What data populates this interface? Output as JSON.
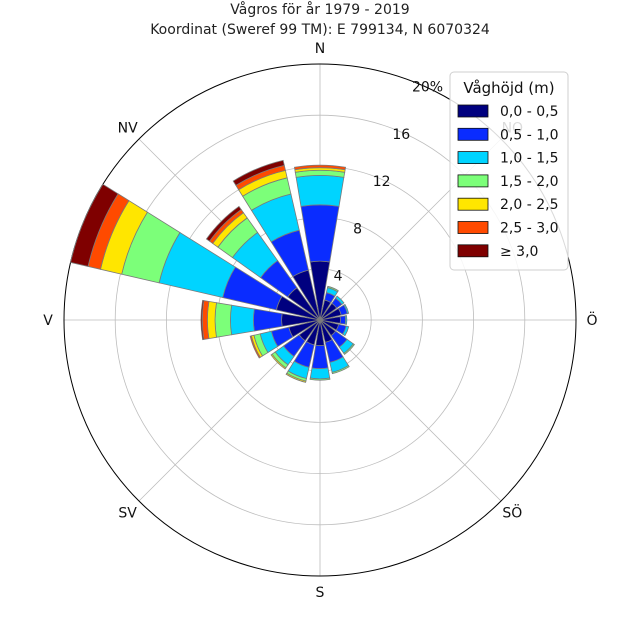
{
  "chart_data": {
    "type": "windrose",
    "title": "Vågros för år 1979 - 2019",
    "subtitle": "Koordinat (Sweref 99 TM): E 799134, N 6070324",
    "directions": [
      "N",
      "NO",
      "Ö",
      "SÖ",
      "S",
      "SV",
      "V",
      "NV"
    ],
    "radial_ticks": [
      "4",
      "8",
      "12",
      "16",
      "20%"
    ],
    "radial_max": 20,
    "legend_title": "Våghöjd (m)",
    "bins": [
      "0,0 - 0,5",
      "0,5 - 1,0",
      "1,0 - 1,5",
      "1,5 - 2,0",
      "2,0 - 2,5",
      "2,5 - 3,0",
      "≥ 3,0"
    ],
    "colors": [
      "#00007f",
      "#0a2cff",
      "#00d4ff",
      "#7cff79",
      "#ffe600",
      "#ff4a00",
      "#7f0000"
    ],
    "sectors": [
      {
        "angle": 0,
        "values": [
          4.6,
          4.4,
          2.3,
          0.4,
          0.2,
          0.2,
          0.0
        ]
      },
      {
        "angle": 22.5,
        "values": [
          1.6,
          0.6,
          0.4,
          0.1,
          0.0,
          0.0,
          0.0
        ]
      },
      {
        "angle": 45,
        "values": [
          1.6,
          0.5,
          0.2,
          0.0,
          0.0,
          0.0,
          0.0
        ]
      },
      {
        "angle": 67.5,
        "values": [
          1.7,
          0.5,
          0.1,
          0.0,
          0.0,
          0.0,
          0.0
        ]
      },
      {
        "angle": 90,
        "values": [
          1.6,
          0.4,
          0.1,
          0.0,
          0.0,
          0.0,
          0.0
        ]
      },
      {
        "angle": 112.5,
        "values": [
          1.5,
          0.6,
          0.2,
          0.0,
          0.0,
          0.0,
          0.0
        ]
      },
      {
        "angle": 135,
        "values": [
          1.5,
          1.1,
          0.6,
          0.1,
          0.0,
          0.0,
          0.0
        ]
      },
      {
        "angle": 157.5,
        "values": [
          1.8,
          1.6,
          0.8,
          0.1,
          0.0,
          0.0,
          0.0
        ]
      },
      {
        "angle": 180,
        "values": [
          2.0,
          1.8,
          0.8,
          0.1,
          0.0,
          0.0,
          0.0
        ]
      },
      {
        "angle": 202.5,
        "values": [
          2.0,
          1.8,
          0.9,
          0.2,
          0.1,
          0.0,
          0.0
        ]
      },
      {
        "angle": 225,
        "values": [
          2.0,
          1.5,
          0.8,
          0.3,
          0.1,
          0.0,
          0.0
        ]
      },
      {
        "angle": 247.5,
        "values": [
          2.5,
          1.4,
          0.9,
          0.5,
          0.2,
          0.1,
          0.0
        ]
      },
      {
        "angle": 270,
        "values": [
          3.0,
          2.2,
          1.8,
          1.2,
          0.6,
          0.4,
          0.1
        ]
      },
      {
        "angle": 292.5,
        "values": [
          3.5,
          4.3,
          5.1,
          3.0,
          1.7,
          1.0,
          1.4
        ]
      },
      {
        "angle": 315,
        "values": [
          3.1,
          2.6,
          2.7,
          1.4,
          0.5,
          0.3,
          0.3
        ]
      },
      {
        "angle": 337.5,
        "values": [
          4.0,
          3.2,
          2.9,
          1.3,
          0.6,
          0.4,
          0.4
        ]
      }
    ]
  }
}
